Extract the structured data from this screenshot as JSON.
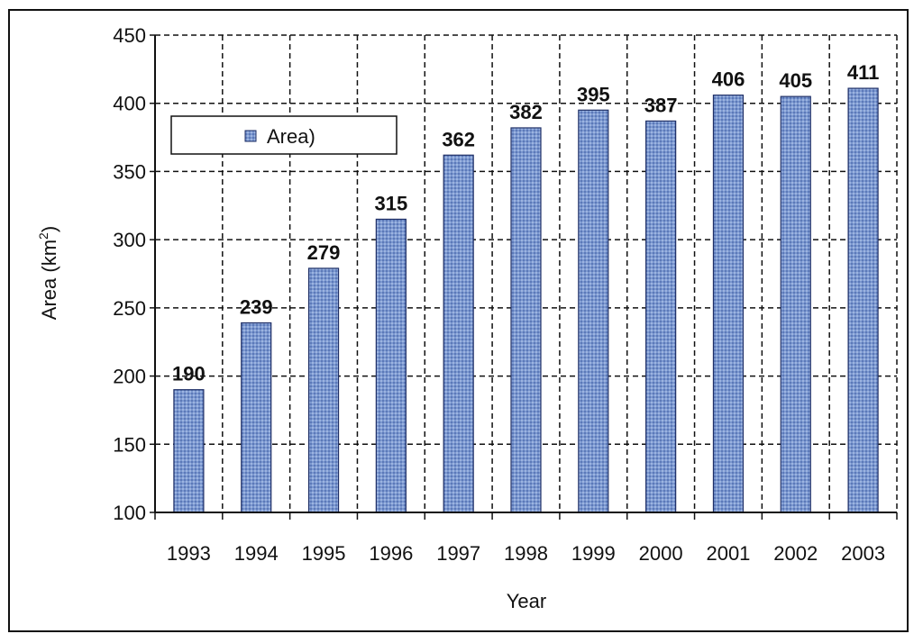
{
  "chart_data": {
    "type": "bar",
    "title": "",
    "xlabel": "Year",
    "ylabel": "Area (km",
    "ylabel_superscript": "2",
    "ylabel_suffix": ")",
    "categories": [
      "1993",
      "1994",
      "1995",
      "1996",
      "1997",
      "1998",
      "1999",
      "2000",
      "2001",
      "2002",
      "2003"
    ],
    "series": [
      {
        "name": "Area)",
        "values": [
          190,
          239,
          279,
          315,
          362,
          382,
          395,
          387,
          406,
          405,
          411
        ]
      }
    ],
    "ylim": [
      100,
      450
    ],
    "yticks": [
      "100",
      "150",
      "200",
      "250",
      "300",
      "350",
      "400",
      "450"
    ],
    "grid": "dashed",
    "legend_position": "upper-left",
    "bar_color": "#6f8fcc",
    "bar_border_color": "#1f2f66"
  }
}
